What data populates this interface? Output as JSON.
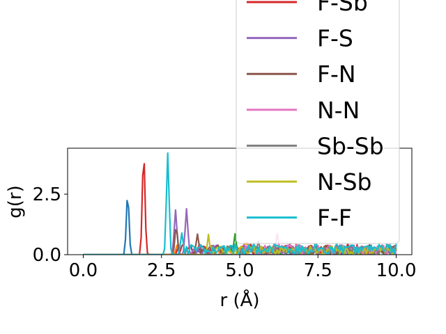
{
  "chart_data": {
    "type": "line",
    "xlabel": "r (Å)",
    "ylabel": "g(r)",
    "xlim": [
      -0.5,
      10.5
    ],
    "ylim": [
      0,
      4.4
    ],
    "x_ticks": [
      "0.0",
      "2.5",
      "5.0",
      "7.5",
      "10.0"
    ],
    "y_ticks": [
      "0.0",
      "2.5"
    ],
    "grid": false,
    "legend_placement": "upper-right, overflowing above the axes",
    "series": [
      {
        "name": "",
        "color": "#1f77b4",
        "peaks": [
          [
            1.42,
            2.5
          ]
        ],
        "noise_from": 7.0,
        "noise_amp": 0.3
      },
      {
        "name": "",
        "color": "#ff7f0e",
        "peaks": [
          [
            3.0,
            0.4
          ],
          [
            5.2,
            0.4
          ]
        ],
        "noise_from": 4.2,
        "noise_amp": 0.35
      },
      {
        "name": "",
        "color": "#2ca02c",
        "peaks": [
          [
            4.85,
            0.7
          ]
        ],
        "noise_from": 4.5,
        "noise_amp": 0.3
      },
      {
        "name": "F-Sb",
        "color": "#d62728",
        "peaks": [
          [
            1.93,
            4.2
          ]
        ],
        "noise_from": 3.0,
        "noise_amp": 0.45
      },
      {
        "name": "F-S",
        "color": "#9467bd",
        "peaks": [
          [
            2.95,
            1.85
          ],
          [
            3.3,
            1.9
          ]
        ],
        "noise_from": 3.5,
        "noise_amp": 0.4
      },
      {
        "name": "F-N",
        "color": "#8c564b",
        "peaks": [
          [
            2.97,
            1.15
          ],
          [
            3.65,
            0.85
          ]
        ],
        "noise_from": 3.8,
        "noise_amp": 0.4
      },
      {
        "name": "N-N",
        "color": "#e377c2",
        "peaks": [
          [
            6.2,
            0.6
          ]
        ],
        "noise_from": 5.0,
        "noise_amp": 0.4
      },
      {
        "name": "Sb-Sb",
        "color": "#7f7f7f",
        "peaks": [
          [
            5.6,
            0.5
          ]
        ],
        "noise_from": 5.0,
        "noise_amp": 0.35
      },
      {
        "name": "N-Sb",
        "color": "#bcbd22",
        "peaks": [
          [
            4.0,
            0.6
          ]
        ],
        "noise_from": 4.0,
        "noise_amp": 0.35
      },
      {
        "name": "F-F",
        "color": "#17becf",
        "peaks": [
          [
            2.7,
            4.2
          ],
          [
            3.15,
            0.9
          ]
        ],
        "noise_from": 3.3,
        "noise_amp": 0.45
      }
    ]
  }
}
